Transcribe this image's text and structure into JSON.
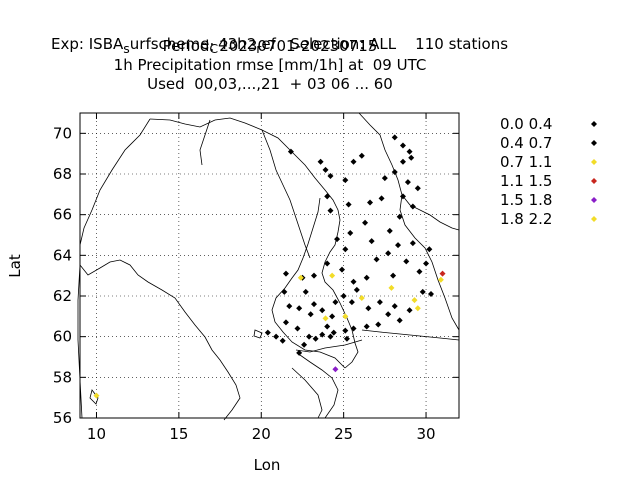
{
  "chart_data": {
    "type": "scatter",
    "title_lines": [
      "Exp: ISBA_surfscheme_C43h2_ref   Selection: ALL    110 stations",
      "Period: 20230701-20230715",
      "1h Precipitation rmse [mm/1h] at  09 UTC",
      "Used  00,03,...,21  + 03 06 ... 60"
    ],
    "xlabel": "Lon",
    "ylabel": "Lat",
    "xlim": [
      9,
      32
    ],
    "ylim": [
      56,
      71
    ],
    "xticks": [
      10,
      15,
      20,
      25,
      30
    ],
    "yticks": [
      56,
      58,
      60,
      62,
      64,
      66,
      68,
      70
    ],
    "legend_position": "right",
    "series": [
      {
        "name": "0.0 0.4",
        "color": "#000000",
        "points": [
          [
            21.8,
            69.1
          ],
          [
            23.6,
            68.6
          ],
          [
            23.9,
            68.2
          ],
          [
            25.1,
            67.7
          ],
          [
            25.6,
            68.6
          ],
          [
            26.1,
            68.9
          ],
          [
            24.2,
            67.9
          ],
          [
            24.0,
            66.9
          ],
          [
            24.2,
            66.2
          ],
          [
            25.3,
            66.5
          ],
          [
            26.6,
            66.6
          ],
          [
            27.3,
            66.8
          ],
          [
            27.5,
            67.8
          ],
          [
            28.1,
            68.1
          ],
          [
            28.6,
            68.6
          ],
          [
            29.0,
            69.1
          ],
          [
            28.1,
            69.8
          ],
          [
            28.6,
            69.4
          ],
          [
            29.1,
            68.8
          ],
          [
            28.9,
            67.6
          ],
          [
            29.5,
            67.3
          ],
          [
            28.6,
            66.9
          ],
          [
            29.2,
            66.4
          ],
          [
            28.4,
            65.9
          ],
          [
            27.8,
            65.2
          ],
          [
            26.3,
            65.6
          ],
          [
            25.4,
            65.1
          ],
          [
            24.6,
            64.8
          ],
          [
            25.1,
            64.3
          ],
          [
            26.7,
            64.7
          ],
          [
            27.0,
            63.8
          ],
          [
            27.7,
            64.1
          ],
          [
            28.3,
            64.5
          ],
          [
            29.2,
            64.6
          ],
          [
            28.8,
            63.7
          ],
          [
            29.6,
            63.2
          ],
          [
            30.0,
            63.6
          ],
          [
            30.2,
            64.3
          ],
          [
            28.0,
            63.0
          ],
          [
            26.4,
            62.9
          ],
          [
            25.6,
            62.7
          ],
          [
            24.9,
            63.3
          ],
          [
            24.0,
            63.6
          ],
          [
            23.2,
            63.0
          ],
          [
            22.5,
            62.9
          ],
          [
            21.5,
            63.1
          ],
          [
            21.4,
            62.2
          ],
          [
            21.7,
            61.5
          ],
          [
            22.3,
            61.4
          ],
          [
            23.0,
            61.1
          ],
          [
            23.7,
            61.3
          ],
          [
            24.5,
            61.7
          ],
          [
            25.0,
            62.0
          ],
          [
            25.5,
            61.7
          ],
          [
            25.8,
            62.3
          ],
          [
            26.5,
            61.4
          ],
          [
            27.2,
            61.7
          ],
          [
            27.7,
            61.1
          ],
          [
            28.1,
            61.5
          ],
          [
            28.4,
            60.8
          ],
          [
            29.0,
            61.3
          ],
          [
            29.8,
            62.2
          ],
          [
            30.3,
            62.1
          ],
          [
            27.1,
            60.6
          ],
          [
            26.4,
            60.5
          ],
          [
            25.6,
            60.4
          ],
          [
            25.1,
            60.3
          ],
          [
            24.4,
            60.2
          ],
          [
            23.7,
            60.1
          ],
          [
            22.9,
            60.0
          ],
          [
            22.2,
            60.4
          ],
          [
            21.5,
            60.7
          ],
          [
            20.9,
            60.0
          ],
          [
            20.4,
            60.2
          ],
          [
            21.3,
            59.8
          ],
          [
            22.3,
            59.2
          ],
          [
            22.6,
            59.6
          ],
          [
            23.3,
            59.9
          ],
          [
            24.2,
            60.0
          ],
          [
            25.2,
            59.9
          ],
          [
            24.0,
            60.5
          ],
          [
            24.3,
            61.0
          ],
          [
            23.2,
            61.6
          ],
          [
            22.7,
            62.2
          ]
        ]
      },
      {
        "name": "0.4 0.7",
        "color": "#000000",
        "points": []
      },
      {
        "name": "0.7 1.1",
        "color": "#f2dc28",
        "points": [
          [
            22.4,
            62.9
          ],
          [
            24.3,
            63.0
          ],
          [
            26.1,
            61.9
          ],
          [
            27.9,
            62.4
          ],
          [
            29.3,
            61.8
          ],
          [
            29.5,
            61.4
          ],
          [
            30.9,
            62.8
          ],
          [
            25.1,
            61.0
          ],
          [
            23.9,
            60.9
          ],
          [
            10.0,
            57.1
          ]
        ]
      },
      {
        "name": "1.1 1.5",
        "color": "#c8261e",
        "points": [
          [
            31.0,
            63.1
          ]
        ]
      },
      {
        "name": "1.5 1.8",
        "color": "#8a1ec8",
        "points": [
          [
            24.5,
            58.4
          ]
        ]
      },
      {
        "name": "1.8 2.2",
        "color": "#f2dc28",
        "points": []
      }
    ]
  }
}
